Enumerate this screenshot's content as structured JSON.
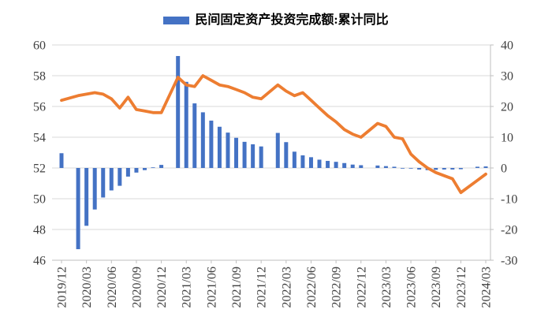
{
  "chart_data": {
    "type": "combo-bar-line",
    "title": "",
    "legend": [
      {
        "label": "民间固定资产投资完成额:累计同比",
        "series_type": "bar",
        "marker_color": "#4472C4"
      }
    ],
    "legend_position": "top",
    "grid": true,
    "colors": {
      "bar": "#4472C4",
      "line": "#ED7D31",
      "gridline": "#D9D9D9",
      "axis_line": "#BFBFBF",
      "tick_text": "#404040"
    },
    "left_axis": {
      "min": 46,
      "max": 60,
      "step": 2,
      "tick_labels": [
        "46",
        "48",
        "50",
        "52",
        "54",
        "56",
        "58",
        "60"
      ]
    },
    "right_axis": {
      "min": -30,
      "max": 40,
      "step": 10,
      "tick_labels": [
        "-30",
        "-20",
        "-10",
        "0",
        "10",
        "20",
        "30",
        "40"
      ]
    },
    "x_axis": {
      "tick_labels": [
        "2019/12",
        "2020/03",
        "2020/06",
        "2020/09",
        "2020/12",
        "2021/03",
        "2021/06",
        "2021/09",
        "2021/12",
        "2022/03",
        "2022/06",
        "2022/09",
        "2022/12",
        "2023/03",
        "2023/06",
        "2023/09",
        "2023/12",
        "2024/03"
      ]
    },
    "x": [
      "2019/12",
      "2020/02",
      "2020/03",
      "2020/04",
      "2020/05",
      "2020/06",
      "2020/07",
      "2020/08",
      "2020/09",
      "2020/10",
      "2020/11",
      "2020/12",
      "2021/02",
      "2021/03",
      "2021/04",
      "2021/05",
      "2021/06",
      "2021/07",
      "2021/08",
      "2021/09",
      "2021/10",
      "2021/11",
      "2021/12",
      "2022/02",
      "2022/03",
      "2022/04",
      "2022/05",
      "2022/06",
      "2022/07",
      "2022/08",
      "2022/09",
      "2022/10",
      "2022/11",
      "2022/12",
      "2023/02",
      "2023/03",
      "2023/04",
      "2023/05",
      "2023/06",
      "2023/07",
      "2023/08",
      "2023/09",
      "2023/10",
      "2023/11",
      "2023/12",
      "2024/02",
      "2024/03"
    ],
    "series": [
      {
        "name": "民间固定资产投资完成额:累计同比",
        "type": "bar",
        "axis": "right",
        "values": [
          4.8,
          -26.4,
          -18.8,
          -13.5,
          -9.6,
          -7.3,
          -5.8,
          -2.8,
          -1.5,
          -0.7,
          0.2,
          1.0,
          36.4,
          28.0,
          21.0,
          18.1,
          15.4,
          13.4,
          11.5,
          9.8,
          8.5,
          7.7,
          7.0,
          11.4,
          8.4,
          5.3,
          4.1,
          3.5,
          2.7,
          2.3,
          2.0,
          1.6,
          1.1,
          0.9,
          0.8,
          0.6,
          0.4,
          -0.1,
          -0.2,
          -0.5,
          -0.7,
          -0.6,
          -0.5,
          -0.5,
          -0.4,
          0.4,
          0.5
        ]
      },
      {
        "name": "private-investment-share-line",
        "type": "line",
        "axis": "left",
        "values": [
          56.4,
          56.7,
          56.8,
          56.9,
          56.8,
          56.5,
          55.9,
          56.6,
          55.8,
          55.7,
          55.6,
          55.6,
          57.9,
          57.4,
          57.3,
          58.0,
          57.7,
          57.4,
          57.3,
          57.1,
          56.9,
          56.6,
          56.5,
          57.4,
          57.0,
          56.7,
          56.9,
          56.4,
          55.9,
          55.4,
          55.0,
          54.5,
          54.2,
          54.0,
          54.9,
          54.7,
          54.0,
          53.9,
          52.9,
          52.4,
          52.0,
          51.7,
          51.5,
          51.3,
          50.4,
          51.2,
          51.6
        ]
      }
    ]
  }
}
